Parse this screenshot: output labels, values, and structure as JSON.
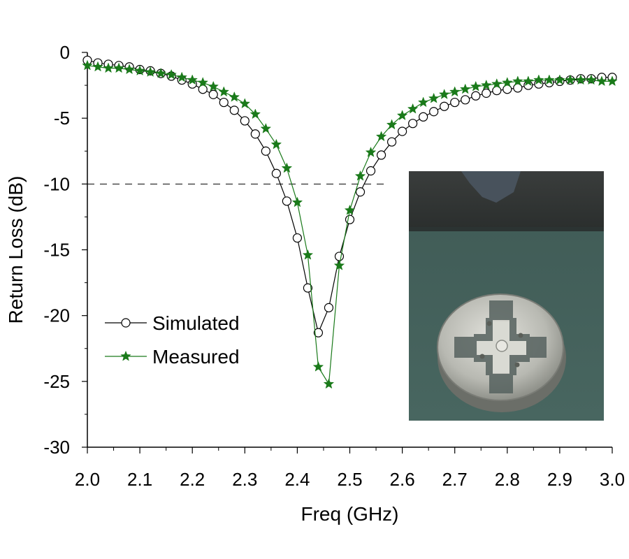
{
  "chart_data": {
    "type": "line",
    "xlabel": "Freq (GHz)",
    "ylabel": "Return Loss (dB)",
    "xlim": [
      2.0,
      3.0
    ],
    "ylim": [
      -30,
      0
    ],
    "x_ticks": [
      2.0,
      2.1,
      2.2,
      2.3,
      2.4,
      2.5,
      2.6,
      2.7,
      2.8,
      2.9,
      3.0
    ],
    "x_tick_labels": [
      "2.0",
      "2.1",
      "2.2",
      "2.3",
      "2.4",
      "2.5",
      "2.6",
      "2.7",
      "2.8",
      "2.9",
      "3.0"
    ],
    "y_ticks": [
      0,
      -5,
      -10,
      -15,
      -20,
      -25,
      -30
    ],
    "y_tick_labels": [
      "0",
      "-5",
      "-10",
      "-15",
      "-20",
      "-25",
      "-30"
    ],
    "reference_line": {
      "y": -10,
      "style": "dashed",
      "x_end": 2.57
    },
    "legend_position": "center-left",
    "inset": "photo of fabricated circular antenna",
    "series": [
      {
        "name": "Simulated",
        "marker": "open-circle",
        "color": "#000000",
        "x": [
          2.0,
          2.02,
          2.04,
          2.06,
          2.08,
          2.1,
          2.12,
          2.14,
          2.16,
          2.18,
          2.2,
          2.22,
          2.24,
          2.26,
          2.28,
          2.3,
          2.32,
          2.34,
          2.36,
          2.38,
          2.4,
          2.42,
          2.44,
          2.46,
          2.48,
          2.5,
          2.52,
          2.54,
          2.56,
          2.58,
          2.6,
          2.62,
          2.64,
          2.66,
          2.68,
          2.7,
          2.72,
          2.74,
          2.76,
          2.78,
          2.8,
          2.82,
          2.84,
          2.86,
          2.88,
          2.9,
          2.92,
          2.94,
          2.96,
          2.98,
          3.0
        ],
        "values": [
          -0.6,
          -0.8,
          -0.9,
          -1.0,
          -1.1,
          -1.3,
          -1.4,
          -1.6,
          -1.8,
          -2.1,
          -2.4,
          -2.8,
          -3.2,
          -3.8,
          -4.4,
          -5.2,
          -6.2,
          -7.5,
          -9.2,
          -11.3,
          -14.1,
          -17.9,
          -21.3,
          -19.4,
          -15.5,
          -12.7,
          -10.6,
          -9.0,
          -7.8,
          -6.8,
          -6.0,
          -5.4,
          -4.9,
          -4.5,
          -4.1,
          -3.8,
          -3.6,
          -3.3,
          -3.1,
          -2.9,
          -2.8,
          -2.7,
          -2.5,
          -2.4,
          -2.3,
          -2.2,
          -2.1,
          -2.0,
          -2.0,
          -1.9,
          -1.9
        ]
      },
      {
        "name": "Measured",
        "marker": "filled-star",
        "color": "#1a7a1a",
        "x": [
          2.0,
          2.02,
          2.04,
          2.06,
          2.08,
          2.1,
          2.12,
          2.14,
          2.16,
          2.18,
          2.2,
          2.22,
          2.24,
          2.26,
          2.28,
          2.3,
          2.32,
          2.34,
          2.36,
          2.38,
          2.4,
          2.42,
          2.44,
          2.46,
          2.48,
          2.5,
          2.52,
          2.54,
          2.56,
          2.58,
          2.6,
          2.62,
          2.64,
          2.66,
          2.68,
          2.7,
          2.72,
          2.74,
          2.76,
          2.78,
          2.8,
          2.82,
          2.84,
          2.86,
          2.88,
          2.9,
          2.92,
          2.94,
          2.96,
          2.98,
          3.0
        ],
        "values": [
          -1.0,
          -1.1,
          -1.2,
          -1.2,
          -1.3,
          -1.4,
          -1.5,
          -1.6,
          -1.7,
          -1.9,
          -2.1,
          -2.3,
          -2.6,
          -3.0,
          -3.4,
          -3.9,
          -4.7,
          -5.8,
          -7.0,
          -8.8,
          -11.4,
          -15.4,
          -23.9,
          -25.2,
          -16.2,
          -12.0,
          -9.4,
          -7.6,
          -6.4,
          -5.5,
          -4.8,
          -4.3,
          -3.8,
          -3.5,
          -3.2,
          -3.0,
          -2.8,
          -2.6,
          -2.5,
          -2.4,
          -2.3,
          -2.2,
          -2.2,
          -2.1,
          -2.1,
          -2.1,
          -2.1,
          -2.1,
          -2.1,
          -2.2,
          -2.2
        ]
      }
    ]
  }
}
